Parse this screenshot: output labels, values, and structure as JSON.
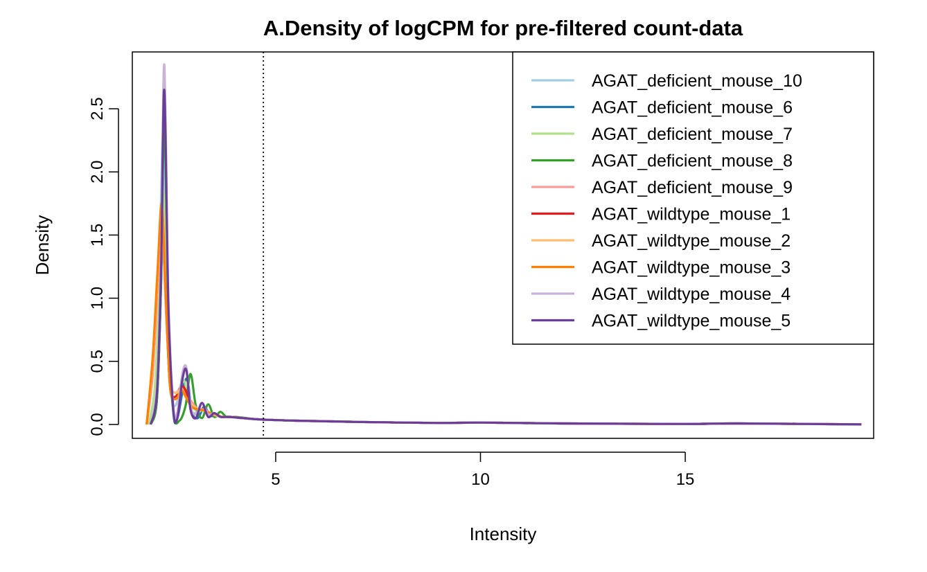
{
  "chart_data": {
    "type": "line",
    "title": "A.Density of logCPM for pre-filtered count-data",
    "xlabel": "Intensity",
    "ylabel": "Density",
    "xlim": [
      1.5,
      19.6
    ],
    "ylim": [
      -0.11,
      2.95
    ],
    "x_ticks": [
      5,
      10,
      15
    ],
    "x_tick_labels": [
      "5",
      "10",
      "15"
    ],
    "y_ticks": [
      0.0,
      0.5,
      1.0,
      1.5,
      2.0,
      2.5
    ],
    "y_tick_labels": [
      "0.0",
      "0.5",
      "1.0",
      "1.5",
      "2.0",
      "2.5"
    ],
    "vline": {
      "x": 4.7,
      "style": "dotted"
    },
    "legend_position": "top-right",
    "grid": false,
    "series": [
      {
        "name": "AGAT_deficient_mouse_10",
        "color": "#A6CEE3",
        "x": [
          1.9,
          2.05,
          2.15,
          2.25,
          2.35,
          2.45,
          2.55,
          2.75,
          2.85,
          2.95,
          3.1,
          3.25,
          3.4,
          3.55,
          3.7,
          3.9,
          4.2,
          4.6,
          5.5,
          7,
          9,
          10,
          12,
          15,
          16.3,
          19.3
        ],
        "values": [
          0.0,
          0.2,
          1.0,
          2.3,
          1.0,
          0.25,
          0.15,
          0.32,
          0.25,
          0.1,
          0.1,
          0.12,
          0.09,
          0.07,
          0.06,
          0.06,
          0.05,
          0.04,
          0.03,
          0.02,
          0.012,
          0.015,
          0.008,
          0.004,
          0.008,
          0.0
        ]
      },
      {
        "name": "AGAT_deficient_mouse_6",
        "color": "#1F78B4",
        "x": [
          1.95,
          2.1,
          2.2,
          2.28,
          2.38,
          2.5,
          2.6,
          2.75,
          2.85,
          2.95,
          3.1,
          3.25,
          3.4,
          3.55,
          3.7,
          3.9,
          4.2,
          4.6,
          5.5,
          7,
          9,
          10,
          12,
          15,
          16.3,
          19.3
        ],
        "values": [
          0.0,
          0.2,
          1.1,
          2.45,
          0.9,
          0.1,
          0.05,
          0.3,
          0.35,
          0.1,
          0.05,
          0.14,
          0.07,
          0.07,
          0.06,
          0.06,
          0.05,
          0.04,
          0.03,
          0.02,
          0.012,
          0.015,
          0.008,
          0.004,
          0.008,
          0.0
        ]
      },
      {
        "name": "AGAT_deficient_mouse_7",
        "color": "#B2DF8A",
        "x": [
          1.9,
          2.05,
          2.15,
          2.25,
          2.35,
          2.45,
          2.55,
          2.75,
          2.85,
          2.95,
          3.1,
          3.25,
          3.4,
          3.55,
          3.7,
          3.9,
          4.2,
          4.6,
          5.5,
          7,
          9,
          10,
          12,
          15,
          16.3,
          19.3
        ],
        "values": [
          0.0,
          0.3,
          1.0,
          1.85,
          0.9,
          0.3,
          0.22,
          0.35,
          0.22,
          0.15,
          0.1,
          0.12,
          0.09,
          0.07,
          0.06,
          0.06,
          0.05,
          0.04,
          0.03,
          0.02,
          0.012,
          0.015,
          0.008,
          0.004,
          0.008,
          0.0
        ]
      },
      {
        "name": "AGAT_deficient_mouse_8",
        "color": "#33A02C",
        "x": [
          1.95,
          2.1,
          2.2,
          2.28,
          2.38,
          2.5,
          2.65,
          2.8,
          2.92,
          3.05,
          3.2,
          3.35,
          3.5,
          3.65,
          3.8,
          4.0,
          4.3,
          4.6,
          5.5,
          7,
          9,
          10,
          12,
          15,
          16.3,
          19.3
        ],
        "values": [
          0.0,
          0.2,
          1.1,
          2.45,
          0.9,
          0.1,
          0.03,
          0.15,
          0.4,
          0.15,
          0.05,
          0.16,
          0.06,
          0.1,
          0.06,
          0.06,
          0.05,
          0.04,
          0.03,
          0.02,
          0.012,
          0.015,
          0.008,
          0.004,
          0.008,
          0.0
        ]
      },
      {
        "name": "AGAT_deficient_mouse_9",
        "color": "#FB9A99",
        "x": [
          1.85,
          2.0,
          2.12,
          2.22,
          2.32,
          2.42,
          2.55,
          2.7,
          2.8,
          2.95,
          3.1,
          3.25,
          3.4,
          3.55,
          3.7,
          3.9,
          4.2,
          4.6,
          5.5,
          7,
          9,
          10,
          12,
          15,
          16.3,
          19.3
        ],
        "values": [
          0.0,
          0.4,
          1.1,
          1.6,
          0.9,
          0.35,
          0.25,
          0.3,
          0.25,
          0.18,
          0.12,
          0.12,
          0.09,
          0.07,
          0.06,
          0.06,
          0.05,
          0.04,
          0.03,
          0.02,
          0.012,
          0.015,
          0.008,
          0.004,
          0.008,
          0.0
        ]
      },
      {
        "name": "AGAT_wildtype_mouse_1",
        "color": "#E31A1C",
        "x": [
          1.85,
          2.0,
          2.12,
          2.22,
          2.32,
          2.42,
          2.55,
          2.7,
          2.8,
          2.95,
          3.1,
          3.25,
          3.4,
          3.55,
          3.7,
          3.9,
          4.2,
          4.6,
          5.5,
          7,
          9,
          10,
          12,
          15,
          16.3,
          19.3
        ],
        "values": [
          0.0,
          0.5,
          1.2,
          1.7,
          1.0,
          0.3,
          0.22,
          0.3,
          0.27,
          0.15,
          0.12,
          0.11,
          0.09,
          0.07,
          0.06,
          0.06,
          0.05,
          0.04,
          0.03,
          0.02,
          0.012,
          0.015,
          0.008,
          0.004,
          0.008,
          0.0
        ]
      },
      {
        "name": "AGAT_wildtype_mouse_2",
        "color": "#FDBF6F",
        "x": [
          1.85,
          2.0,
          2.12,
          2.22,
          2.32,
          2.42,
          2.55,
          2.7,
          2.8,
          2.95,
          3.1,
          3.25,
          3.4,
          3.55,
          3.7,
          3.9,
          4.2,
          4.6,
          5.5,
          7,
          9,
          10,
          12,
          15,
          16.3,
          19.3
        ],
        "values": [
          0.0,
          0.5,
          1.2,
          1.7,
          1.0,
          0.35,
          0.25,
          0.28,
          0.22,
          0.16,
          0.12,
          0.11,
          0.09,
          0.07,
          0.06,
          0.06,
          0.05,
          0.04,
          0.03,
          0.02,
          0.012,
          0.015,
          0.008,
          0.004,
          0.008,
          0.0
        ]
      },
      {
        "name": "AGAT_wildtype_mouse_3",
        "color": "#FF7F00",
        "x": [
          1.85,
          2.0,
          2.12,
          2.22,
          2.32,
          2.42,
          2.55,
          2.7,
          2.8,
          2.95,
          3.1,
          3.25,
          3.4,
          3.55,
          3.7,
          3.9,
          4.2,
          4.6,
          5.5,
          7,
          9,
          10,
          12,
          15,
          16.3,
          19.3
        ],
        "values": [
          0.0,
          0.55,
          1.25,
          1.75,
          1.0,
          0.3,
          0.2,
          0.27,
          0.22,
          0.14,
          0.12,
          0.11,
          0.09,
          0.08,
          0.06,
          0.06,
          0.05,
          0.04,
          0.03,
          0.02,
          0.012,
          0.015,
          0.008,
          0.004,
          0.008,
          0.0
        ]
      },
      {
        "name": "AGAT_wildtype_mouse_4",
        "color": "#CAB2D6",
        "x": [
          1.95,
          2.1,
          2.2,
          2.28,
          2.38,
          2.5,
          2.6,
          2.72,
          2.82,
          2.92,
          3.05,
          3.2,
          3.35,
          3.5,
          3.65,
          3.85,
          4.2,
          4.6,
          5.5,
          7,
          9,
          10,
          12,
          15,
          16.3,
          19.3
        ],
        "values": [
          0.0,
          0.3,
          1.3,
          2.85,
          1.0,
          0.15,
          0.1,
          0.4,
          0.45,
          0.15,
          0.08,
          0.17,
          0.08,
          0.09,
          0.06,
          0.06,
          0.05,
          0.04,
          0.03,
          0.02,
          0.012,
          0.015,
          0.008,
          0.004,
          0.008,
          0.0
        ]
      },
      {
        "name": "AGAT_wildtype_mouse_5",
        "color": "#6A3D9A",
        "x": [
          1.95,
          2.1,
          2.2,
          2.28,
          2.38,
          2.5,
          2.6,
          2.72,
          2.82,
          2.92,
          3.05,
          3.2,
          3.35,
          3.5,
          3.65,
          3.85,
          4.2,
          4.6,
          5.5,
          7,
          9,
          10,
          12,
          15,
          16.3,
          19.3
        ],
        "values": [
          0.0,
          0.25,
          1.2,
          2.65,
          0.95,
          0.12,
          0.05,
          0.35,
          0.43,
          0.12,
          0.05,
          0.17,
          0.06,
          0.09,
          0.06,
          0.06,
          0.05,
          0.04,
          0.03,
          0.02,
          0.012,
          0.015,
          0.008,
          0.004,
          0.008,
          0.0
        ]
      }
    ]
  }
}
